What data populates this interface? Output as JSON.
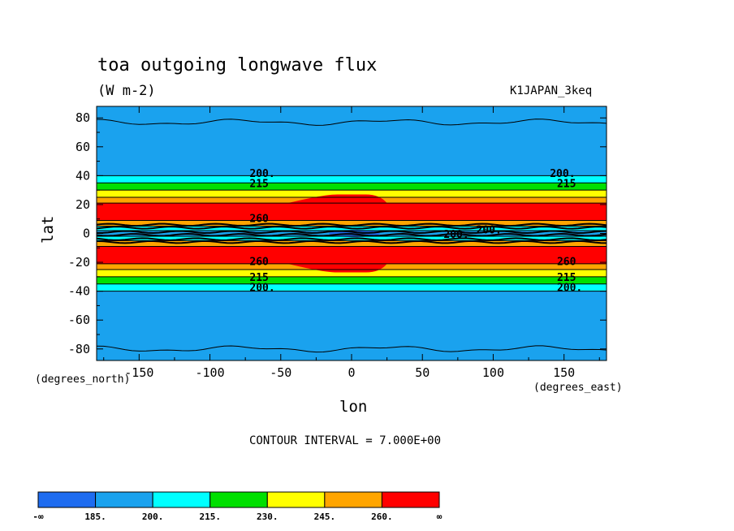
{
  "chart_data": {
    "type": "heatmap",
    "title": "toa outgoing longwave flux",
    "units": "(W m-2)",
    "run_label": "K1JAPAN_3keq",
    "xlabel": "lon",
    "ylabel": "lat",
    "x_unit_label": "(degrees_east)",
    "y_unit_label": "(degrees_north)",
    "xlim": [
      -180,
      180
    ],
    "ylim": [
      -88,
      88
    ],
    "x_ticks": [
      -150,
      -100,
      -50,
      0,
      50,
      100,
      150
    ],
    "y_ticks": [
      80,
      60,
      40,
      20,
      0,
      -20,
      -40,
      -60,
      -80
    ],
    "contour_interval_text": "CONTOUR INTERVAL = 7.000E+00",
    "colorbar": {
      "levels": [
        "-∞",
        "185.",
        "200.",
        "215.",
        "230.",
        "245.",
        "260.",
        "∞"
      ],
      "colors": [
        "#1e6cf0",
        "#1aa2ee",
        "#00ffff",
        "#00e000",
        "#ffff00",
        "#ffa500",
        "#ff0000"
      ]
    },
    "bands_by_latitude": [
      {
        "lat_from": -88,
        "lat_to": -40,
        "class": 1
      },
      {
        "lat_from": -40,
        "lat_to": -35,
        "class": 2
      },
      {
        "lat_from": -35,
        "lat_to": -30,
        "class": 3
      },
      {
        "lat_from": -30,
        "lat_to": -25,
        "class": 4
      },
      {
        "lat_from": -25,
        "lat_to": -21,
        "class": 5
      },
      {
        "lat_from": -21,
        "lat_to": -9,
        "class": 6
      },
      {
        "lat_from": -9,
        "lat_to": -5,
        "class": 5
      },
      {
        "lat_from": -5,
        "lat_to": -2,
        "class": 2
      },
      {
        "lat_from": -2,
        "lat_to": 2,
        "class": 1
      },
      {
        "lat_from": 2,
        "lat_to": 5,
        "class": 2
      },
      {
        "lat_from": 5,
        "lat_to": 9,
        "class": 5
      },
      {
        "lat_from": 9,
        "lat_to": 21,
        "class": 6
      },
      {
        "lat_from": 21,
        "lat_to": 25,
        "class": 5
      },
      {
        "lat_from": 25,
        "lat_to": 30,
        "class": 4
      },
      {
        "lat_from": 30,
        "lat_to": 35,
        "class": 3
      },
      {
        "lat_from": 35,
        "lat_to": 40,
        "class": 2
      },
      {
        "lat_from": 40,
        "lat_to": 88,
        "class": 1
      }
    ],
    "contour_labels": [
      {
        "text": "200.",
        "lon": -72,
        "lat": 39
      },
      {
        "text": "215",
        "lon": -72,
        "lat": 32
      },
      {
        "text": "200.",
        "lon": 140,
        "lat": 39
      },
      {
        "text": "215",
        "lon": 145,
        "lat": 32
      },
      {
        "text": "200.",
        "lon": -72,
        "lat": -40
      },
      {
        "text": "215",
        "lon": -72,
        "lat": -33
      },
      {
        "text": "200.",
        "lon": 145,
        "lat": -40
      },
      {
        "text": "215",
        "lon": 145,
        "lat": -33
      },
      {
        "text": "260",
        "lon": -72,
        "lat": 8
      },
      {
        "text": "260",
        "lon": -72,
        "lat": -22
      },
      {
        "text": "260",
        "lon": 145,
        "lat": -22
      },
      {
        "text": "200.",
        "lon": 65,
        "lat": -3
      },
      {
        "text": "200.",
        "lon": 88,
        "lat": 0
      }
    ]
  }
}
